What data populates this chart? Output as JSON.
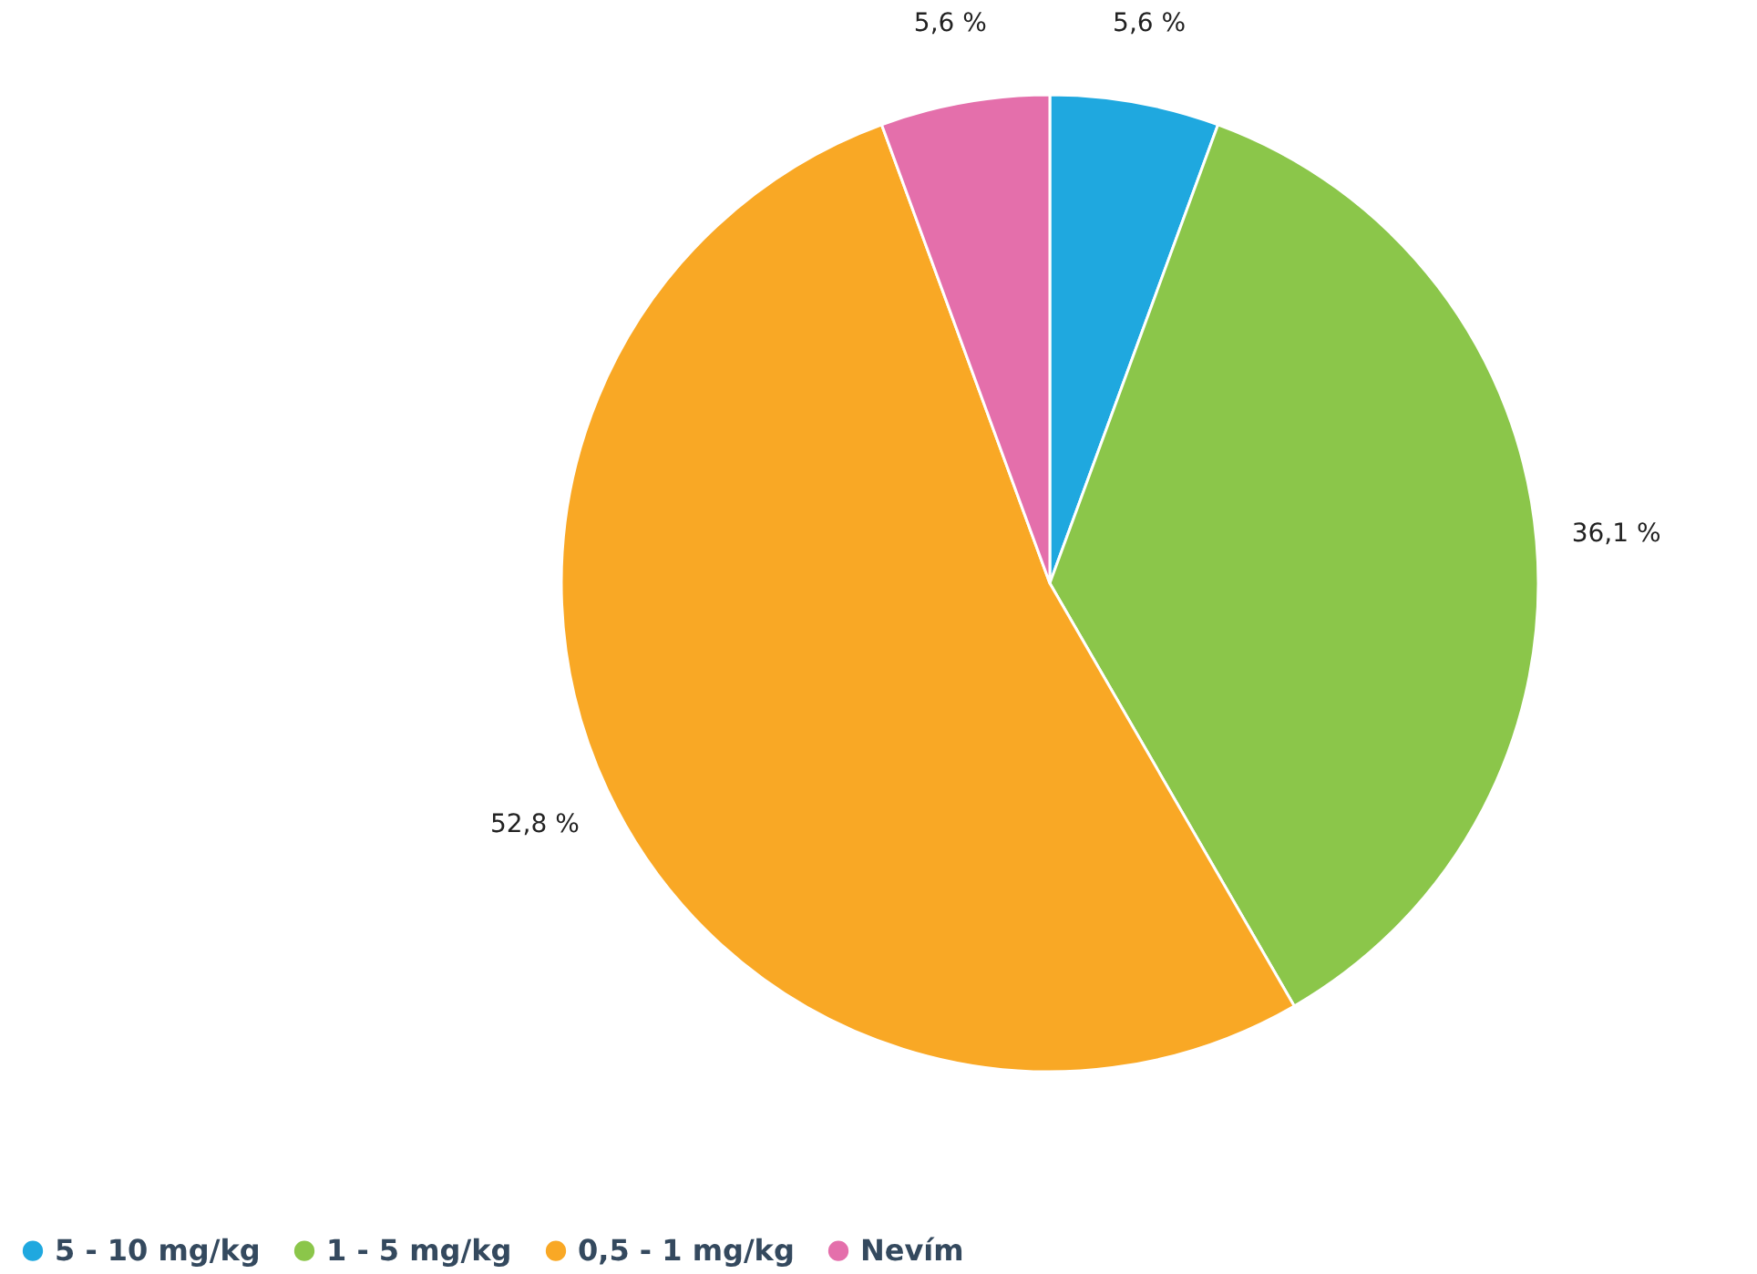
{
  "chart_data": {
    "type": "pie",
    "categories": [
      "5 - 10 mg/kg",
      "1 - 5 mg/kg",
      "0,5 - 1 mg/kg",
      "Nevím"
    ],
    "values": [
      5.6,
      36.1,
      52.8,
      5.6
    ],
    "value_labels": [
      "5,6 %",
      "36,1 %",
      "52,8 %",
      "5,6 %"
    ],
    "colors": [
      "#1fa8df",
      "#8bc64a",
      "#f9a825",
      "#e46fab"
    ],
    "legend": "bottom left"
  }
}
